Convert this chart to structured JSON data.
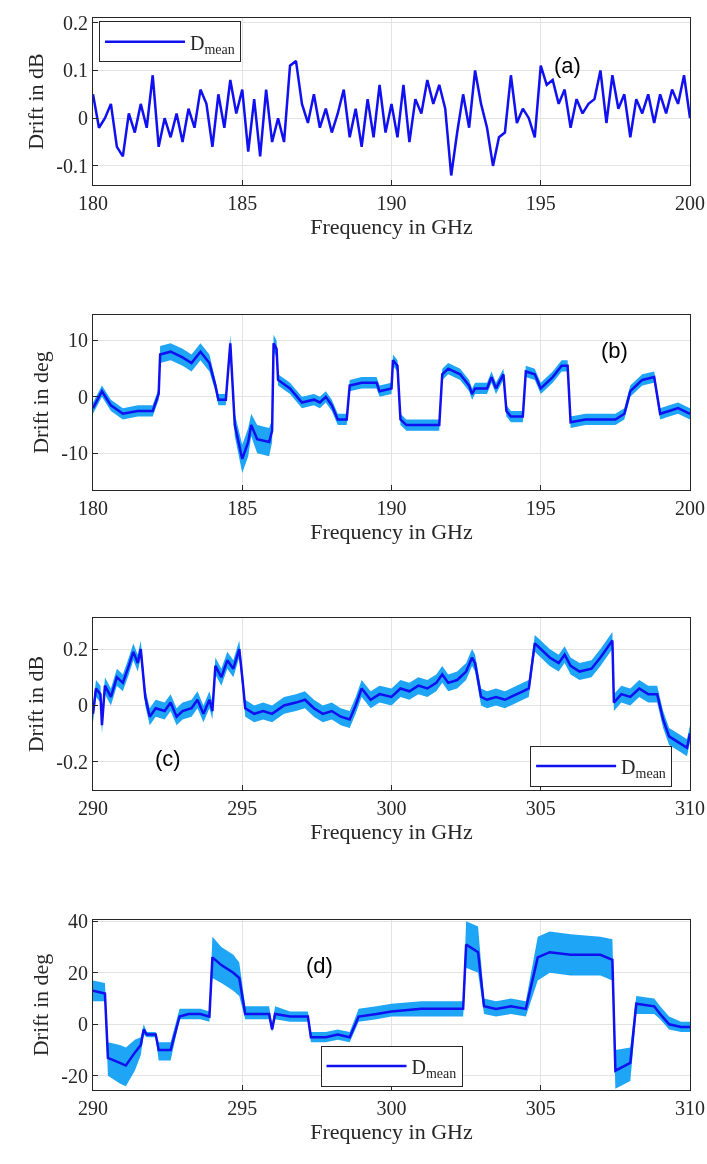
{
  "chart_data": [
    {
      "type": "line",
      "xlabel": "Frequency in GHz",
      "ylabel": "Drift in dB",
      "annotations": [
        "(a)"
      ],
      "xlim": [
        180,
        200
      ],
      "xticks": [
        180,
        185,
        190,
        195,
        200
      ],
      "ylim": [
        -0.14,
        0.21
      ],
      "yticks": [
        -0.1,
        0,
        0.1,
        0.2
      ],
      "grid": true,
      "legend": "top left",
      "x": [
        180.0,
        180.2,
        180.4,
        180.6,
        180.8,
        181.0,
        181.2,
        181.4,
        181.6,
        181.8,
        182.0,
        182.2,
        182.4,
        182.6,
        182.8,
        183.0,
        183.2,
        183.4,
        183.6,
        183.8,
        184.0,
        184.2,
        184.4,
        184.6,
        184.8,
        185.0,
        185.2,
        185.4,
        185.6,
        185.8,
        186.0,
        186.2,
        186.4,
        186.6,
        186.8,
        187.0,
        187.2,
        187.4,
        187.6,
        187.8,
        188.0,
        188.2,
        188.4,
        188.6,
        188.8,
        189.0,
        189.2,
        189.4,
        189.6,
        189.8,
        190.0,
        190.2,
        190.4,
        190.6,
        190.8,
        191.0,
        191.2,
        191.4,
        191.6,
        191.8,
        192.0,
        192.2,
        192.4,
        192.6,
        192.8,
        193.0,
        193.2,
        193.4,
        193.6,
        193.8,
        194.0,
        194.2,
        194.4,
        194.6,
        194.8,
        195.0,
        195.2,
        195.4,
        195.6,
        195.8,
        196.0,
        196.2,
        196.4,
        196.6,
        196.8,
        197.0,
        197.2,
        197.4,
        197.6,
        197.8,
        198.0,
        198.2,
        198.4,
        198.6,
        198.8,
        199.0,
        199.2,
        199.4,
        199.6,
        199.8,
        200.0
      ],
      "series": [
        {
          "name": "D$_{mean}$",
          "color": "#1010f0",
          "values": [
            0.05,
            -0.02,
            0.0,
            0.03,
            -0.06,
            -0.08,
            0.01,
            -0.03,
            0.03,
            -0.02,
            0.09,
            -0.06,
            0.0,
            -0.04,
            0.01,
            -0.05,
            0.02,
            -0.02,
            0.06,
            0.03,
            -0.06,
            0.05,
            -0.02,
            0.08,
            0.01,
            0.06,
            -0.07,
            0.04,
            -0.08,
            0.06,
            -0.05,
            0.0,
            -0.05,
            0.11,
            0.12,
            0.03,
            -0.01,
            0.05,
            -0.02,
            0.02,
            -0.03,
            0.01,
            0.06,
            -0.04,
            0.02,
            -0.06,
            0.04,
            -0.04,
            0.07,
            -0.03,
            0.03,
            -0.04,
            0.07,
            -0.05,
            0.04,
            0.01,
            0.08,
            0.03,
            0.07,
            0.02,
            -0.12,
            -0.03,
            0.05,
            -0.02,
            0.1,
            0.03,
            -0.02,
            -0.1,
            -0.04,
            -0.03,
            0.09,
            -0.01,
            0.02,
            0.0,
            -0.04,
            0.11,
            0.07,
            0.08,
            0.03,
            0.06,
            -0.02,
            0.04,
            0.01,
            0.03,
            0.04,
            0.1,
            -0.01,
            0.09,
            0.02,
            0.05,
            -0.04,
            0.04,
            0.01,
            0.05,
            -0.01,
            0.05,
            0.01,
            0.06,
            0.03,
            0.09,
            0.0
          ]
        }
      ]
    },
    {
      "type": "line",
      "xlabel": "Frequency in GHz",
      "ylabel": "Drift in deg",
      "annotations": [
        "(b)"
      ],
      "xlim": [
        180,
        200
      ],
      "xticks": [
        180,
        185,
        190,
        195,
        200
      ],
      "ylim": [
        -16.5,
        14.5
      ],
      "yticks": [
        -10,
        0,
        10
      ],
      "grid": true,
      "x": [
        180.0,
        180.3,
        180.6,
        181.0,
        181.5,
        182.0,
        182.2,
        182.25,
        182.6,
        183.0,
        183.3,
        183.6,
        183.9,
        184.1,
        184.2,
        184.45,
        184.6,
        184.75,
        185.0,
        185.2,
        185.3,
        185.5,
        185.9,
        186.0,
        186.05,
        186.15,
        186.2,
        186.6,
        187.0,
        187.4,
        187.6,
        187.8,
        188.0,
        188.2,
        188.5,
        188.6,
        189.0,
        189.5,
        189.6,
        190.0,
        190.05,
        190.2,
        190.3,
        190.5,
        191.0,
        191.6,
        191.7,
        191.9,
        192.3,
        192.6,
        192.7,
        192.8,
        193.2,
        193.35,
        193.5,
        193.75,
        193.85,
        194.0,
        194.4,
        194.5,
        194.8,
        195.0,
        195.4,
        195.7,
        195.9,
        196.0,
        196.5,
        197.0,
        197.5,
        197.8,
        198.0,
        198.4,
        198.8,
        199.0,
        199.3,
        199.6,
        200.0
      ],
      "series": [
        {
          "color": "#1010f0",
          "values": [
            -2,
            1,
            -1.5,
            -3,
            -2.5,
            -2.5,
            0.5,
            7.5,
            8,
            7,
            6,
            8,
            6,
            2,
            -0.5,
            -0.5,
            9.5,
            -5,
            -11,
            -8,
            -5,
            -7.5,
            -8,
            -6,
            9.5,
            8.5,
            3,
            1.5,
            -1,
            -0.5,
            -1,
            0,
            -1.5,
            -4,
            -4,
            2,
            2.5,
            2.5,
            1,
            1.5,
            6.5,
            5.5,
            -4,
            -5,
            -5,
            -5,
            4,
            5,
            4,
            2,
            0.5,
            1.5,
            1.5,
            3.5,
            1.5,
            4,
            -2.5,
            -3.5,
            -3.5,
            4.5,
            4,
            1.5,
            3.5,
            5.5,
            5.5,
            -4.5,
            -4,
            -4,
            -4,
            -3,
            1,
            3,
            3.5,
            -3,
            -2.5,
            -2,
            -3
          ],
          "lower": [
            -3,
            0,
            -2.5,
            -4,
            -3.5,
            -3.5,
            -0.5,
            6,
            6.5,
            5.5,
            4.5,
            6.5,
            4.5,
            1,
            -1.5,
            -1.5,
            8,
            -7,
            -13.5,
            -10.5,
            -7,
            -10,
            -10.5,
            -8,
            8,
            7,
            2,
            0.5,
            -2,
            -1.5,
            -2,
            -1,
            -2.5,
            -5,
            -5,
            1,
            1.5,
            1.5,
            0,
            0.5,
            5.5,
            4.5,
            -5,
            -6,
            -6,
            -6,
            3,
            4,
            3,
            1,
            -0.5,
            0.5,
            0.5,
            2.5,
            0.5,
            3,
            -3.5,
            -4.5,
            -4.5,
            3.5,
            3,
            0.5,
            2.5,
            4.5,
            4.5,
            -5.5,
            -5,
            -5,
            -5,
            -4,
            0,
            2,
            2.5,
            -4,
            -3.5,
            -3,
            -4
          ],
          "upper": [
            -1,
            2,
            -0.5,
            -2,
            -1.5,
            -1.5,
            1.5,
            9,
            9.5,
            8.5,
            7.5,
            9.5,
            7.5,
            3,
            0.5,
            0.5,
            11,
            -3,
            -8.5,
            -5.5,
            -3,
            -5,
            -5.5,
            -4,
            11,
            10,
            4,
            2.5,
            0,
            0.5,
            0,
            1,
            -0.5,
            -3,
            -3,
            3,
            3.5,
            3.5,
            2,
            2.5,
            7.5,
            6.5,
            -3,
            -4,
            -4,
            -4,
            5,
            6,
            5,
            3,
            1.5,
            2.5,
            2.5,
            4.5,
            2.5,
            5,
            -1.5,
            -2.5,
            -2.5,
            5.5,
            5,
            2.5,
            4.5,
            6.5,
            6.5,
            -3.5,
            -3,
            -3,
            -3,
            -2,
            2,
            4,
            4.5,
            -2,
            -1.5,
            -1,
            -2
          ]
        }
      ]
    },
    {
      "type": "line",
      "xlabel": "Frequency in GHz",
      "ylabel": "Drift in dB",
      "annotations": [
        "(c)"
      ],
      "xlim": [
        290,
        310
      ],
      "xticks": [
        290,
        295,
        300,
        305,
        310
      ],
      "ylim": [
        -0.3,
        0.31
      ],
      "yticks": [
        -0.2,
        0,
        0.2
      ],
      "grid": true,
      "legend": "bottom right",
      "x": [
        290.0,
        290.1,
        290.25,
        290.3,
        290.4,
        290.6,
        290.8,
        291.0,
        291.2,
        291.35,
        291.5,
        291.6,
        291.75,
        291.9,
        292.1,
        292.4,
        292.6,
        292.8,
        293.0,
        293.3,
        293.5,
        293.7,
        293.9,
        294.0,
        294.1,
        294.3,
        294.5,
        294.7,
        294.9,
        295.0,
        295.1,
        295.4,
        295.7,
        296.0,
        296.4,
        296.8,
        297.1,
        297.4,
        297.7,
        298.0,
        298.3,
        298.6,
        298.8,
        299.0,
        299.3,
        299.6,
        300.0,
        300.3,
        300.6,
        300.9,
        301.2,
        301.5,
        301.7,
        301.9,
        302.2,
        302.5,
        302.7,
        302.8,
        303.0,
        303.2,
        303.5,
        303.8,
        304.0,
        304.4,
        304.6,
        304.8,
        305.0,
        305.3,
        305.6,
        305.8,
        306.0,
        306.3,
        306.7,
        307.0,
        307.2,
        307.4,
        307.45,
        307.7,
        308.0,
        308.3,
        308.6,
        308.9,
        309.1,
        309.3,
        309.6,
        309.9,
        310.0
      ],
      "series": [
        {
          "name": "D$_{mean}$",
          "color": "#1010f0",
          "values": [
            -0.03,
            0.06,
            0.04,
            -0.07,
            0.07,
            0.03,
            0.1,
            0.08,
            0.14,
            0.19,
            0.15,
            0.2,
            0.03,
            -0.04,
            -0.01,
            -0.02,
            0.01,
            -0.04,
            -0.02,
            -0.01,
            0.02,
            -0.03,
            0.02,
            -0.02,
            0.14,
            0.1,
            0.16,
            0.13,
            0.2,
            0.1,
            -0.01,
            -0.03,
            -0.02,
            -0.03,
            0.0,
            0.01,
            0.02,
            -0.01,
            -0.03,
            -0.02,
            -0.04,
            -0.05,
            0.0,
            0.06,
            0.02,
            0.04,
            0.03,
            0.06,
            0.05,
            0.07,
            0.06,
            0.08,
            0.11,
            0.08,
            0.09,
            0.12,
            0.17,
            0.15,
            0.03,
            0.02,
            0.03,
            0.02,
            0.03,
            0.05,
            0.06,
            0.22,
            0.2,
            0.17,
            0.15,
            0.18,
            0.14,
            0.12,
            0.13,
            0.17,
            0.2,
            0.23,
            0.01,
            0.04,
            0.03,
            0.06,
            0.04,
            0.04,
            -0.05,
            -0.11,
            -0.13,
            -0.15,
            -0.1
          ],
          "lower": [
            -0.06,
            0.03,
            0.01,
            -0.1,
            0.04,
            0.0,
            0.07,
            0.05,
            0.11,
            0.16,
            0.12,
            0.17,
            0.0,
            -0.07,
            -0.04,
            -0.05,
            -0.02,
            -0.07,
            -0.05,
            -0.04,
            -0.01,
            -0.06,
            -0.01,
            -0.05,
            0.11,
            0.07,
            0.13,
            0.1,
            0.17,
            0.07,
            -0.04,
            -0.06,
            -0.05,
            -0.06,
            -0.03,
            -0.02,
            -0.01,
            -0.04,
            -0.06,
            -0.05,
            -0.07,
            -0.08,
            -0.03,
            0.03,
            -0.01,
            0.01,
            0.0,
            0.03,
            0.02,
            0.04,
            0.03,
            0.05,
            0.08,
            0.05,
            0.06,
            0.09,
            0.14,
            0.12,
            0.0,
            -0.01,
            0.0,
            -0.01,
            0.0,
            0.02,
            0.03,
            0.19,
            0.17,
            0.14,
            0.12,
            0.15,
            0.11,
            0.09,
            0.1,
            0.14,
            0.17,
            0.2,
            -0.02,
            0.01,
            0.0,
            0.03,
            0.01,
            0.01,
            -0.08,
            -0.14,
            -0.16,
            -0.18,
            -0.13
          ],
          "upper": [
            0.0,
            0.09,
            0.07,
            -0.04,
            0.1,
            0.06,
            0.13,
            0.11,
            0.17,
            0.22,
            0.18,
            0.23,
            0.06,
            -0.01,
            0.02,
            0.01,
            0.04,
            -0.01,
            0.01,
            0.02,
            0.05,
            0.0,
            0.05,
            0.01,
            0.17,
            0.13,
            0.19,
            0.16,
            0.23,
            0.13,
            0.02,
            0.0,
            0.01,
            0.0,
            0.03,
            0.04,
            0.05,
            0.02,
            0.0,
            0.01,
            -0.01,
            -0.02,
            0.03,
            0.09,
            0.05,
            0.07,
            0.06,
            0.09,
            0.08,
            0.1,
            0.09,
            0.11,
            0.14,
            0.11,
            0.12,
            0.15,
            0.2,
            0.18,
            0.06,
            0.05,
            0.06,
            0.05,
            0.06,
            0.08,
            0.09,
            0.25,
            0.23,
            0.2,
            0.18,
            0.21,
            0.17,
            0.15,
            0.16,
            0.2,
            0.23,
            0.26,
            0.04,
            0.07,
            0.06,
            0.09,
            0.07,
            0.07,
            -0.02,
            -0.08,
            -0.1,
            -0.12,
            -0.07
          ]
        }
      ]
    },
    {
      "type": "line",
      "xlabel": "Frequency in GHz",
      "ylabel": "Drift in deg",
      "annotations": [
        "(d)"
      ],
      "xlim": [
        290,
        310
      ],
      "xticks": [
        290,
        295,
        300,
        305,
        310
      ],
      "ylim": [
        -25.5,
        40.5
      ],
      "yticks": [
        -20,
        0,
        20,
        40
      ],
      "grid": true,
      "legend": "bottom",
      "x": [
        290.0,
        290.4,
        290.5,
        290.9,
        291.1,
        291.4,
        291.6,
        291.7,
        291.8,
        292.1,
        292.2,
        292.6,
        292.9,
        293.2,
        293.6,
        293.9,
        294.0,
        294.3,
        294.7,
        294.9,
        295.1,
        295.5,
        295.9,
        296.0,
        296.1,
        296.6,
        297.2,
        297.3,
        297.8,
        298.2,
        298.6,
        298.9,
        299.5,
        300.0,
        301.0,
        302.0,
        302.4,
        302.5,
        302.9,
        303.1,
        303.5,
        304.0,
        304.5,
        304.9,
        305.3,
        306.0,
        307.0,
        307.4,
        307.5,
        308.0,
        308.2,
        308.8,
        309.0,
        309.3,
        309.7,
        310.0
      ],
      "series": [
        {
          "name": "D$_{mean}$",
          "color": "#1010f0",
          "values": [
            13,
            12,
            -13,
            -15,
            -16,
            -11,
            -8,
            -2,
            -4,
            -4,
            -10,
            -10,
            3,
            4,
            4,
            3,
            26,
            23,
            20,
            18,
            4,
            4,
            4,
            -2,
            4,
            3,
            3,
            -5,
            -5,
            -4,
            -5,
            3,
            4,
            5,
            6,
            6,
            6,
            31,
            28,
            7,
            6,
            7,
            6,
            26,
            28,
            27,
            27,
            25,
            -18,
            -15,
            8,
            7,
            4,
            0,
            -1,
            -1
          ],
          "lower": [
            9,
            9,
            -20,
            -23,
            -24,
            -18,
            -12,
            -4,
            -5,
            -5,
            -14,
            -14,
            2,
            2,
            2,
            1,
            18,
            16,
            13,
            11,
            2,
            2,
            2,
            -3,
            2,
            1,
            1,
            -7,
            -7,
            -6,
            -7,
            1,
            2,
            3,
            3,
            3,
            3,
            22,
            20,
            4,
            3,
            4,
            3,
            17,
            20,
            19,
            19,
            17,
            -25,
            -22,
            4,
            4,
            2,
            -2,
            -3,
            -3
          ],
          "upper": [
            17,
            16,
            -7,
            -8,
            -9,
            -6,
            -5,
            0,
            -3,
            -3,
            -7,
            -7,
            6,
            6,
            6,
            5,
            34,
            30,
            27,
            24,
            7,
            7,
            7,
            0,
            7,
            5,
            5,
            -3,
            -3,
            -2,
            -3,
            6,
            7,
            8,
            9,
            9,
            9,
            40,
            38,
            10,
            9,
            10,
            9,
            34,
            36,
            35,
            34,
            33,
            -10,
            -9,
            11,
            10,
            7,
            3,
            1,
            1
          ]
        }
      ]
    }
  ]
}
